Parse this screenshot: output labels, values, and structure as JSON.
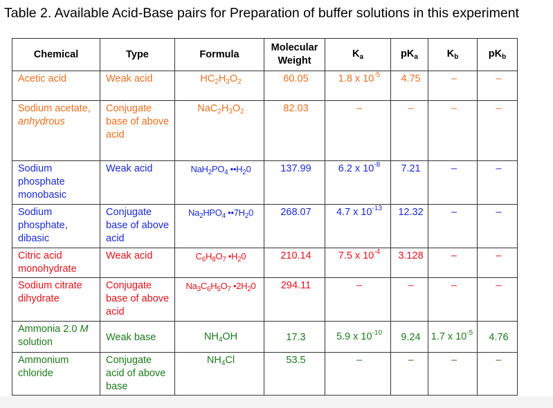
{
  "caption": "Table 2. Available Acid-Base pairs for Preparation of buffer solutions in this experiment",
  "headers": {
    "chemical": "Chemical",
    "type": "Type",
    "formula": "Formula",
    "mw_line1": "Molecular",
    "mw_line2": "Weight",
    "ka": "K",
    "ka_sub": "a",
    "pka": "pK",
    "pka_sub": "a",
    "kb": "K",
    "kb_sub": "b",
    "pkb": "pK",
    "pkb_sub": "b"
  },
  "dash": "–",
  "colors": {
    "orange": "#ec6e1e",
    "blue": "#1a2ad0",
    "red": "#e0121a",
    "green": "#1a7a1a"
  },
  "rows": [
    {
      "chemical": "Acetic acid",
      "type": "Weak acid",
      "formula": "HC2H3O2",
      "mw": "60.05",
      "ka": "1.8 x 10",
      "ka_exp": "-5",
      "pka": "4.75",
      "kb": "–",
      "pkb": "–"
    },
    {
      "chemical_line1": "Sodium acetate,",
      "chemical_line2": "anhydrous",
      "type": "Conjugate base of above acid",
      "formula": "NaC2H3O2",
      "mw": "82.03",
      "ka": "–",
      "pka": "–",
      "kb": "–",
      "pkb": "–"
    },
    {
      "chemical": "Sodium phosphate monobasic",
      "type": "Weak acid",
      "formula": "NaH2PO4 ••H20",
      "mw": "137.99",
      "ka": "6.2 x 10",
      "ka_exp": "-8",
      "pka": "7.21",
      "kb": "–",
      "pkb": "–"
    },
    {
      "chemical": "Sodium phosphate, dibasic",
      "type": "Conjugate base of above acid",
      "formula": "Na2HPO4 ••7H20",
      "mw": "268.07",
      "ka": "4.7 x 10",
      "ka_exp": "-13",
      "pka": "12.32",
      "kb": "–",
      "pkb": "–"
    },
    {
      "chemical": "Citric acid monohydrate",
      "type": "Weak acid",
      "formula": "C6H8O7 •H20",
      "mw": "210.14",
      "ka": "7.5 x 10",
      "ka_exp": "-4",
      "pka": "3.128",
      "kb": "–",
      "pkb": "–"
    },
    {
      "chemical": "Sodium citrate dihydrate",
      "type": "Conjugate base of above acid",
      "formula": "Na3C6H5O7 •2H20",
      "mw": "294.11",
      "ka": "–",
      "pka": "–",
      "kb": "–",
      "pkb": "–"
    },
    {
      "chemical_pre": "Ammonia 2.0 ",
      "chemical_italic": "M",
      "chemical_post": "solution",
      "type": "Weak base",
      "formula": "NH4OH",
      "mw": "17.3",
      "ka": "5.9 x 10",
      "ka_exp": "-10",
      "pka": "9.24",
      "kb": "1.7 x 10",
      "kb_exp": "-5",
      "pkb": "4.76"
    },
    {
      "chemical": "Ammonium chloride",
      "type": "Conjugate acid of above base",
      "formula": "NH4Cl",
      "mw": "53.5",
      "ka": "–",
      "pka": "–",
      "kb": "–",
      "pkb": "–"
    }
  ]
}
